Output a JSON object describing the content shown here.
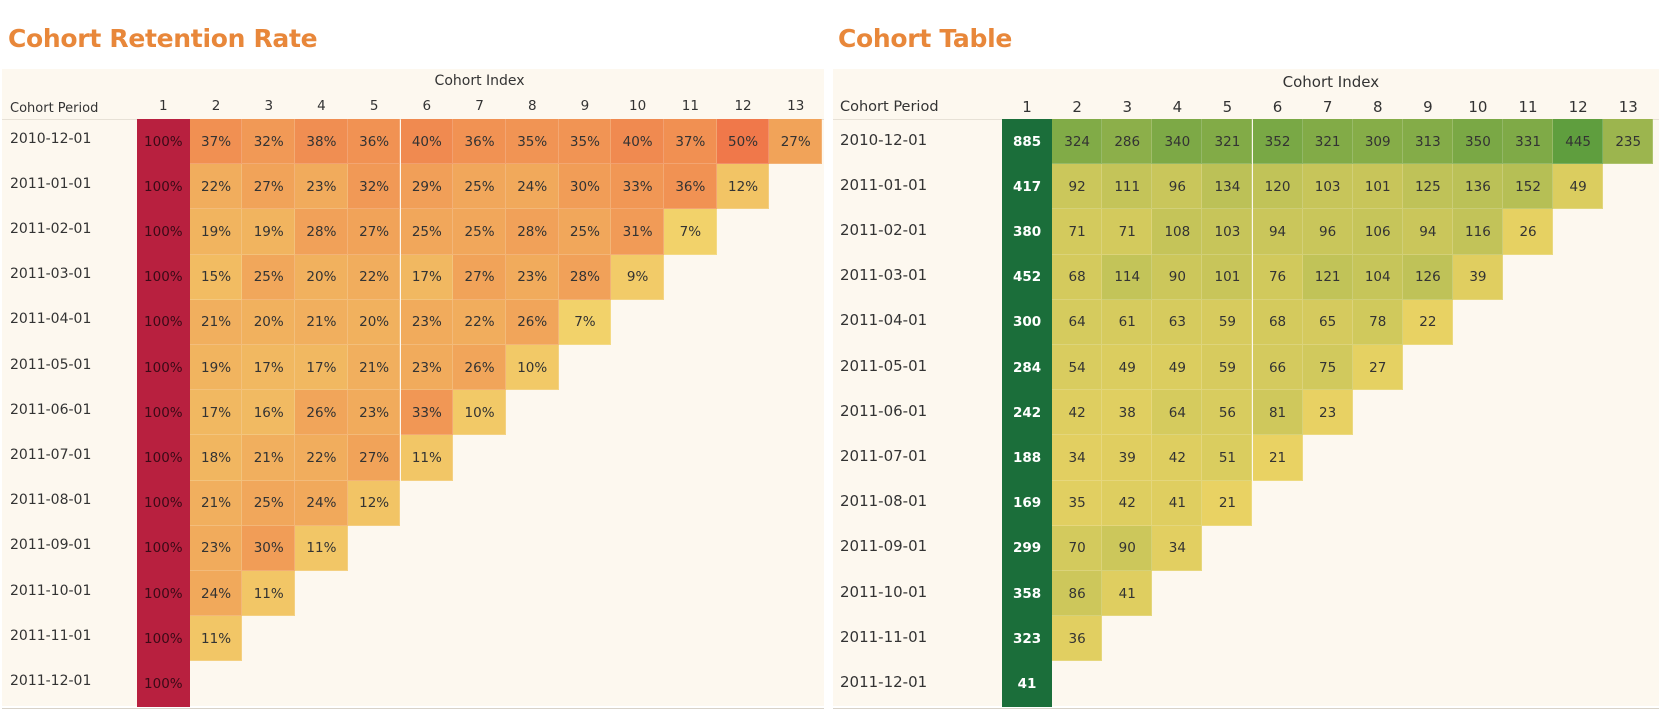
{
  "chart_data": [
    {
      "type": "heatmap",
      "title": "Cohort Retention Rate",
      "x_axis_title": "Cohort Index",
      "y_axis_title": "Cohort Period",
      "columns": [
        "1",
        "2",
        "3",
        "4",
        "5",
        "6",
        "7",
        "8",
        "9",
        "10",
        "11",
        "12",
        "13"
      ],
      "rows": [
        "2010-12-01",
        "2011-01-01",
        "2011-02-01",
        "2011-03-01",
        "2011-04-01",
        "2011-05-01",
        "2011-06-01",
        "2011-07-01",
        "2011-08-01",
        "2011-09-01",
        "2011-10-01",
        "2011-11-01",
        "2011-12-01"
      ],
      "unit": "%",
      "values": [
        [
          100,
          37,
          32,
          38,
          36,
          40,
          36,
          35,
          35,
          40,
          37,
          50,
          27
        ],
        [
          100,
          22,
          27,
          23,
          32,
          29,
          25,
          24,
          30,
          33,
          36,
          12
        ],
        [
          100,
          19,
          19,
          28,
          27,
          25,
          25,
          28,
          25,
          31,
          7
        ],
        [
          100,
          15,
          25,
          20,
          22,
          17,
          27,
          23,
          28,
          9
        ],
        [
          100,
          21,
          20,
          21,
          20,
          23,
          22,
          26,
          7
        ],
        [
          100,
          19,
          17,
          17,
          21,
          23,
          26,
          10
        ],
        [
          100,
          17,
          16,
          26,
          23,
          33,
          10
        ],
        [
          100,
          18,
          21,
          22,
          27,
          11
        ],
        [
          100,
          21,
          25,
          24,
          12
        ],
        [
          100,
          23,
          30,
          11
        ],
        [
          100,
          24,
          11
        ],
        [
          100,
          11
        ],
        [
          100
        ]
      ],
      "colors": {
        "first_column": "#b8203f",
        "scale_low": "#f2d26a",
        "scale_high": "#f0784a"
      }
    },
    {
      "type": "heatmap",
      "title": "Cohort Table",
      "x_axis_title": "Cohort Index",
      "y_axis_title": "Cohort Period",
      "columns": [
        "1",
        "2",
        "3",
        "4",
        "5",
        "6",
        "7",
        "8",
        "9",
        "10",
        "11",
        "12",
        "13"
      ],
      "rows": [
        "2010-12-01",
        "2011-01-01",
        "2011-02-01",
        "2011-03-01",
        "2011-04-01",
        "2011-05-01",
        "2011-06-01",
        "2011-07-01",
        "2011-08-01",
        "2011-09-01",
        "2011-10-01",
        "2011-11-01",
        "2011-12-01"
      ],
      "unit": "",
      "values": [
        [
          885,
          324,
          286,
          340,
          321,
          352,
          321,
          309,
          313,
          350,
          331,
          445,
          235
        ],
        [
          417,
          92,
          111,
          96,
          134,
          120,
          103,
          101,
          125,
          136,
          152,
          49
        ],
        [
          380,
          71,
          71,
          108,
          103,
          94,
          96,
          106,
          94,
          116,
          26
        ],
        [
          452,
          68,
          114,
          90,
          101,
          76,
          121,
          104,
          126,
          39
        ],
        [
          300,
          64,
          61,
          63,
          59,
          68,
          65,
          78,
          22
        ],
        [
          284,
          54,
          49,
          49,
          59,
          66,
          75,
          27
        ],
        [
          242,
          42,
          38,
          64,
          56,
          81,
          23
        ],
        [
          188,
          34,
          39,
          42,
          51,
          21
        ],
        [
          169,
          35,
          42,
          41,
          21
        ],
        [
          299,
          70,
          90,
          34
        ],
        [
          358,
          86,
          41
        ],
        [
          323,
          36
        ],
        [
          41
        ]
      ],
      "colors": {
        "first_column": "#1b6e3a",
        "scale_low": "#e9d263",
        "scale_high": "#5f9e3e"
      }
    }
  ]
}
